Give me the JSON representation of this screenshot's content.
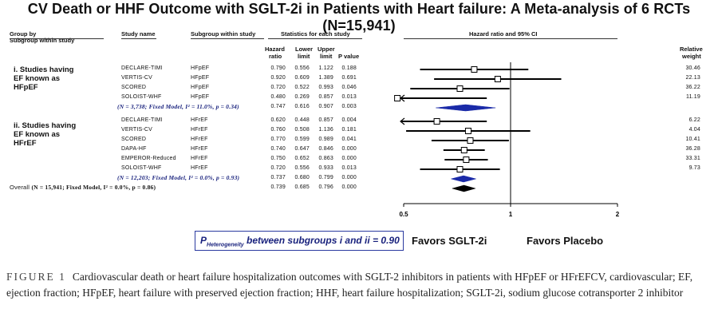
{
  "title": "CV Death or HHF Outcome with SGLT-2i in Patients with Heart failure: A Meta-analysis of 6 RCTs (N=15,941)",
  "headers": {
    "group_by": "Group by",
    "subgroup_within_study": "Subgroup within study",
    "study_name": "Study name",
    "subgroup_col": "Subgroup within study",
    "statistics": "Statistics for each study",
    "hr_ci": "Hazard ratio and 95% CI",
    "relative_weight_1": "Relative",
    "relative_weight_2": "weight",
    "hazard_1": "Hazard",
    "hazard_2": "ratio",
    "lower_1": "Lower",
    "lower_2": "limit",
    "upper_1": "Upper",
    "upper_2": "limit",
    "pvalue": "P value"
  },
  "groups": {
    "g1": [
      "i. Studies having",
      "EF known as",
      "HFpEF"
    ],
    "g2": [
      "ii. Studies having",
      "EF known as",
      "HFrEF"
    ]
  },
  "rows": [
    {
      "study": "DECLARE-TIMI",
      "sub": "HFpEF",
      "hr": "0.790",
      "lo": "0.556",
      "hi": "1.122",
      "p": "0.188",
      "w": "30.46"
    },
    {
      "study": "VERTIS-CV",
      "sub": "HFpEF",
      "hr": "0.920",
      "lo": "0.609",
      "hi": "1.389",
      "p": "0.691",
      "w": "22.13"
    },
    {
      "study": "SCORED",
      "sub": "HFpEF",
      "hr": "0.720",
      "lo": "0.522",
      "hi": "0.993",
      "p": "0.046",
      "w": "36.22"
    },
    {
      "study": "SOLOIST-WHF",
      "sub": "HFpEF",
      "hr": "0.480",
      "lo": "0.269",
      "hi": "0.857",
      "p": "0.013",
      "w": "11.19"
    },
    {
      "pooled": "(N = 3,738; Fixed Model, I² = 11.0%, p = 0.34)",
      "hr": "0.747",
      "lo": "0.616",
      "hi": "0.907",
      "p": "0.003"
    },
    {
      "study": "DECLARE-TIMI",
      "sub": "HFrEF",
      "hr": "0.620",
      "lo": "0.448",
      "hi": "0.857",
      "p": "0.004",
      "w": "6.22"
    },
    {
      "study": "VERTIS-CV",
      "sub": "HFrEF",
      "hr": "0.760",
      "lo": "0.508",
      "hi": "1.136",
      "p": "0.181",
      "w": "4.04"
    },
    {
      "study": "SCORED",
      "sub": "HFrEF",
      "hr": "0.770",
      "lo": "0.599",
      "hi": "0.989",
      "p": "0.041",
      "w": "10.41"
    },
    {
      "study": "DAPA-HF",
      "sub": "HFrEF",
      "hr": "0.740",
      "lo": "0.647",
      "hi": "0.846",
      "p": "0.000",
      "w": "36.28"
    },
    {
      "study": "EMPEROR-Reduced",
      "sub": "HFrEF",
      "hr": "0.750",
      "lo": "0.652",
      "hi": "0.863",
      "p": "0.000",
      "w": "33.31"
    },
    {
      "study": "SOLOIST-WHF",
      "sub": "HFrEF",
      "hr": "0.720",
      "lo": "0.556",
      "hi": "0.933",
      "p": "0.013",
      "w": "9.73"
    },
    {
      "pooled": "(N = 12,203; Fixed Model, I² = 0.0%, p = 0.93)",
      "hr": "0.737",
      "lo": "0.680",
      "hi": "0.799",
      "p": "0.000"
    },
    {
      "overall_prefix": "Overall",
      "overall": "(N = 15,941; Fixed Model,  I² = 0.0%, p = 0.86)",
      "hr": "0.739",
      "lo": "0.685",
      "hi": "0.796",
      "p": "0.000"
    }
  ],
  "phet_label": "between subgroups i and ii = 0.90",
  "phet_symbol": "P",
  "phet_sub": "Heterogeneity",
  "favors_left": "Favors SGLT-2i",
  "favors_right": "Favors Placebo",
  "caption": {
    "fig": "FIGURE 1",
    "text": "Cardiovascular death or heart failure hospitalization outcomes with SGLT-2 inhibitors in patients with HFpEF or HFrEFCV, cardiovascular; EF, ejection fraction; HFpEF, heart failure with preserved ejection fraction; HHF, heart failure hospitalization; SGLT-2i, sodium glucose cotransporter 2 inhibitor"
  },
  "colors": {
    "pooled_diamond": "#1a2aa8",
    "overall_diamond": "#000000",
    "pool_text": "#1a237e"
  },
  "chart_data": {
    "type": "forest",
    "title": "CV Death or HHF Outcome with SGLT-2i in Patients with Heart failure: A Meta-analysis of 6 RCTs (N=15,941)",
    "xscale": "log",
    "xlim": [
      0.5,
      2
    ],
    "xticks": [
      "0.5",
      "1",
      "2"
    ],
    "xlabel": "Hazard ratio and 95% CI",
    "reference_line": 1,
    "series": [
      {
        "name": "DECLARE-TIMI",
        "group": "HFpEF",
        "hr": 0.79,
        "lower": 0.556,
        "upper": 1.122,
        "weight": 30.46
      },
      {
        "name": "VERTIS-CV",
        "group": "HFpEF",
        "hr": 0.92,
        "lower": 0.609,
        "upper": 1.389,
        "weight": 22.13
      },
      {
        "name": "SCORED",
        "group": "HFpEF",
        "hr": 0.72,
        "lower": 0.522,
        "upper": 0.993,
        "weight": 36.22
      },
      {
        "name": "SOLOIST-WHF",
        "group": "HFpEF",
        "hr": 0.48,
        "lower": 0.269,
        "upper": 0.857,
        "weight": 11.19
      },
      {
        "name": "HFpEF pooled",
        "pooled": true,
        "hr": 0.747,
        "lower": 0.616,
        "upper": 0.907
      },
      {
        "name": "DECLARE-TIMI",
        "group": "HFrEF",
        "hr": 0.62,
        "lower": 0.448,
        "upper": 0.857,
        "weight": 6.22
      },
      {
        "name": "VERTIS-CV",
        "group": "HFrEF",
        "hr": 0.76,
        "lower": 0.508,
        "upper": 1.136,
        "weight": 4.04
      },
      {
        "name": "SCORED",
        "group": "HFrEF",
        "hr": 0.77,
        "lower": 0.599,
        "upper": 0.989,
        "weight": 10.41
      },
      {
        "name": "DAPA-HF",
        "group": "HFrEF",
        "hr": 0.74,
        "lower": 0.647,
        "upper": 0.846,
        "weight": 36.28
      },
      {
        "name": "EMPEROR-Reduced",
        "group": "HFrEF",
        "hr": 0.75,
        "lower": 0.652,
        "upper": 0.863,
        "weight": 33.31
      },
      {
        "name": "SOLOIST-WHF",
        "group": "HFrEF",
        "hr": 0.72,
        "lower": 0.556,
        "upper": 0.933,
        "weight": 9.73
      },
      {
        "name": "HFrEF pooled",
        "pooled": true,
        "hr": 0.737,
        "lower": 0.68,
        "upper": 0.799
      },
      {
        "name": "Overall",
        "overall": true,
        "hr": 0.739,
        "lower": 0.685,
        "upper": 0.796
      }
    ]
  }
}
